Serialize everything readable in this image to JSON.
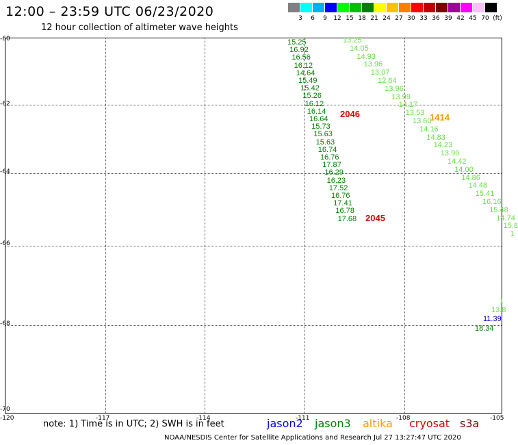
{
  "header": {
    "title": "12:00 – 23:59 UTC 06/23/2020",
    "subtitle": "12 hour collection of altimeter wave heights"
  },
  "legend": {
    "unit_label": "(ft)",
    "colors": [
      "#808080",
      "#00ffff",
      "#00b0f0",
      "#0000ff",
      "#00ff00",
      "#00c000",
      "#008000",
      "#ffff00",
      "#ffc000",
      "#ff8000",
      "#ff0000",
      "#c00000",
      "#800000",
      "#a000a0",
      "#ff00ff",
      "#ffc0ff",
      "#000000"
    ],
    "labels": [
      "3",
      "6",
      "9",
      "12",
      "15",
      "18",
      "21",
      "24",
      "27",
      "30",
      "33",
      "36",
      "39",
      "42",
      "45",
      "70"
    ]
  },
  "axes": {
    "lat_labels": [
      "-60",
      "-62",
      "-64",
      "-66",
      "-68",
      "-70"
    ],
    "lon_labels": [
      "-120",
      "-117",
      "-114",
      "-111",
      "-108",
      "-105"
    ]
  },
  "tracks": {
    "track_a": {
      "color": "#008000",
      "values": [
        "15.25",
        "16.92",
        "16.56",
        "16.12",
        "14.64",
        "15.49",
        "15.42",
        "15.26",
        "16.12",
        "16.14",
        "16.64",
        "15.73",
        "15.63",
        "15.63",
        "16.74",
        "16.76",
        "17.87",
        "16.29",
        "16.23",
        "17.52",
        "16.76",
        "17.41",
        "16.78",
        "17.68"
      ]
    },
    "track_b": {
      "color": "#66dd44",
      "values": [
        "13.25",
        "14.05",
        "14.93",
        "13.96",
        "13.07",
        "12.64",
        "13.96",
        "13.99",
        "14.17",
        "13.53",
        "13.60",
        "14.16",
        "14.83",
        "14.23",
        "13.99",
        "14.42",
        "14.00",
        "14.86",
        "14.48",
        "15.41",
        "16.16",
        "15.48",
        "14.74",
        "15.8",
        "1"
      ]
    },
    "track_c": {
      "values": [
        "1",
        "13.8",
        "11.39",
        "18.34"
      ]
    },
    "pass_labels": {
      "p2046": "2046",
      "p2045": "2045",
      "p1414": "1414"
    }
  },
  "note": "note: 1) Time is in UTC; 2) SWH is in feet",
  "satellites": {
    "jason2": "jason2",
    "jason3": "jason3",
    "altika": "altika",
    "cryosat": "cryosat",
    "s3a": "s3a"
  },
  "footer": "NOAA/NESDIS Center for Satellite Applications and Research    Jul 27 13:27:47 UTC 2020"
}
